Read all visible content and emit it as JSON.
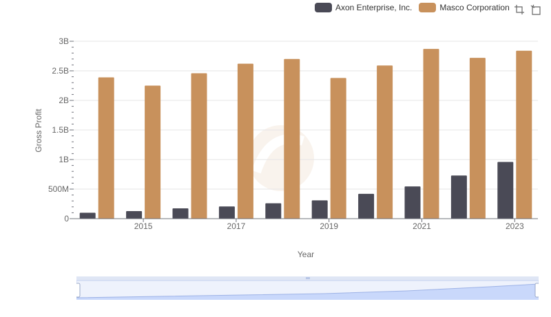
{
  "legend": {
    "items": [
      {
        "name": "Axon Enterprise, Inc.",
        "color": "#4a4a56"
      },
      {
        "name": "Masco Corporation",
        "color": "#c8915c"
      }
    ]
  },
  "toolbox": {
    "icons": [
      "zoom-icon",
      "zoom-reset-icon"
    ]
  },
  "chart_data": {
    "type": "bar",
    "xlabel": "Year",
    "ylabel": "Gross Profit",
    "ylim": [
      0,
      3000000000
    ],
    "yticks": [
      {
        "value": 0,
        "label": "0"
      },
      {
        "value": 500000000,
        "label": "500M"
      },
      {
        "value": 1000000000,
        "label": "1B"
      },
      {
        "value": 1500000000,
        "label": "1.5B"
      },
      {
        "value": 2000000000,
        "label": "2B"
      },
      {
        "value": 2500000000,
        "label": "2.5B"
      },
      {
        "value": 3000000000,
        "label": "3B"
      }
    ],
    "categories": [
      "2014",
      "2015",
      "2016",
      "2017",
      "2018",
      "2019",
      "2020",
      "2021",
      "2022",
      "2023"
    ],
    "xtick_labels": [
      "2015",
      "2017",
      "2019",
      "2021",
      "2023"
    ],
    "grid": true,
    "legend_position": "top-right",
    "series": [
      {
        "name": "Axon Enterprise, Inc.",
        "color": "#4a4a56",
        "values": [
          100000000,
          128000000,
          175000000,
          207000000,
          260000000,
          310000000,
          420000000,
          545000000,
          730000000,
          960000000
        ]
      },
      {
        "name": "Masco Corporation",
        "color": "#c8915c",
        "values": [
          2390000000,
          2250000000,
          2460000000,
          2620000000,
          2700000000,
          2380000000,
          2590000000,
          2870000000,
          2720000000,
          2840000000
        ]
      }
    ]
  }
}
